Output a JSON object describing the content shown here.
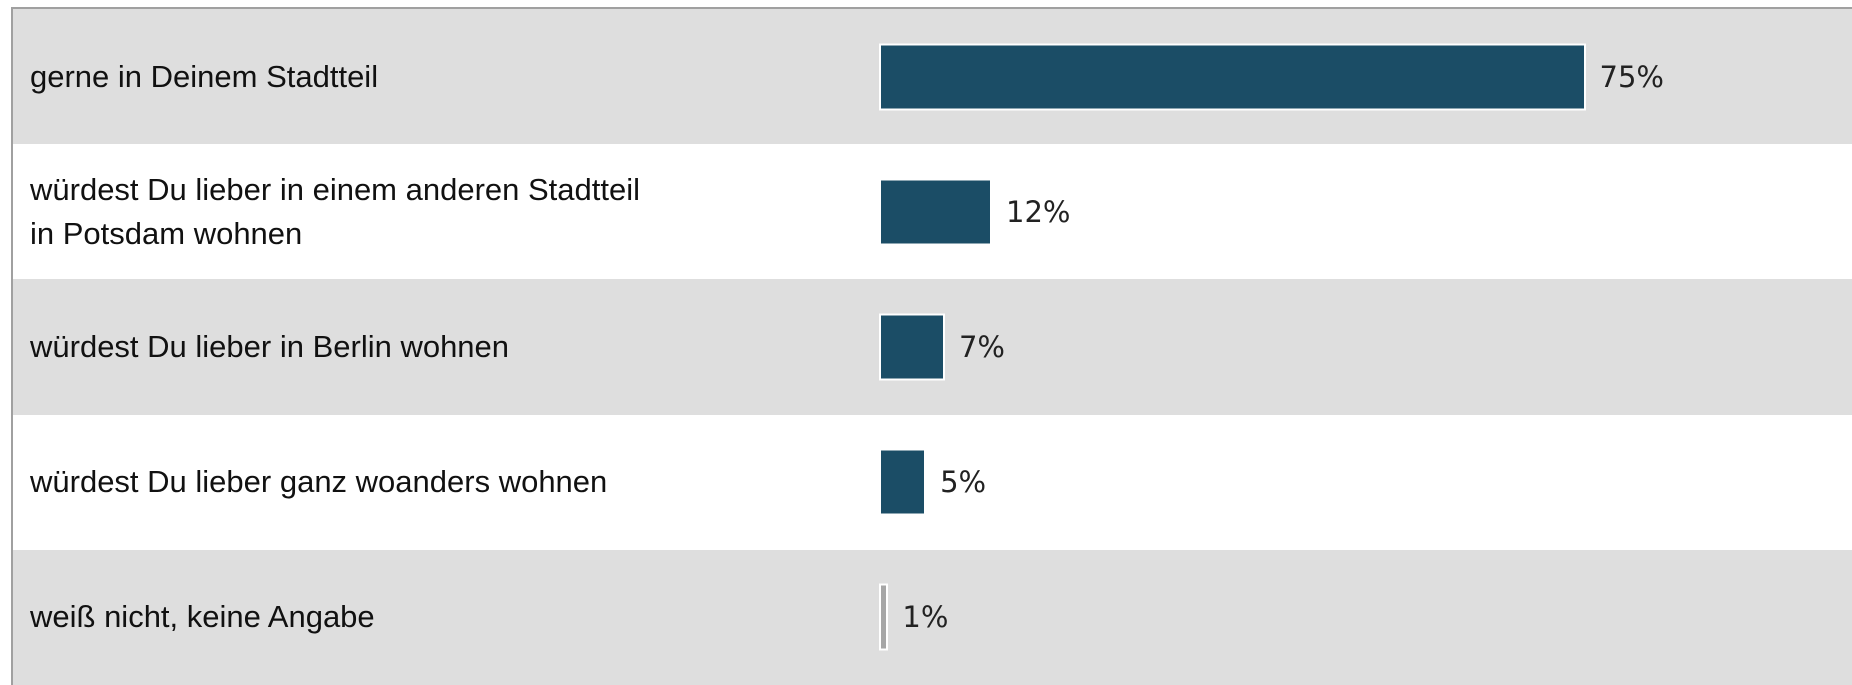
{
  "chart_data": {
    "type": "bar",
    "categories": [
      "gerne in Deinem Stadtteil",
      "würdest Du lieber in einem anderen Stadtteil\nin Potsdam wohnen",
      "würdest Du lieber in Berlin wohnen",
      "würdest Du lieber ganz woanders wohnen",
      "weiß nicht, keine Angabe"
    ],
    "values": [
      75,
      12,
      7,
      5,
      1
    ],
    "value_labels": [
      "75%",
      "12%",
      "7%",
      "5%",
      "1%"
    ],
    "colors": [
      "#1b4d66",
      "#1b4d66",
      "#1b4d66",
      "#1b4d66",
      "#a6a6a6"
    ]
  }
}
